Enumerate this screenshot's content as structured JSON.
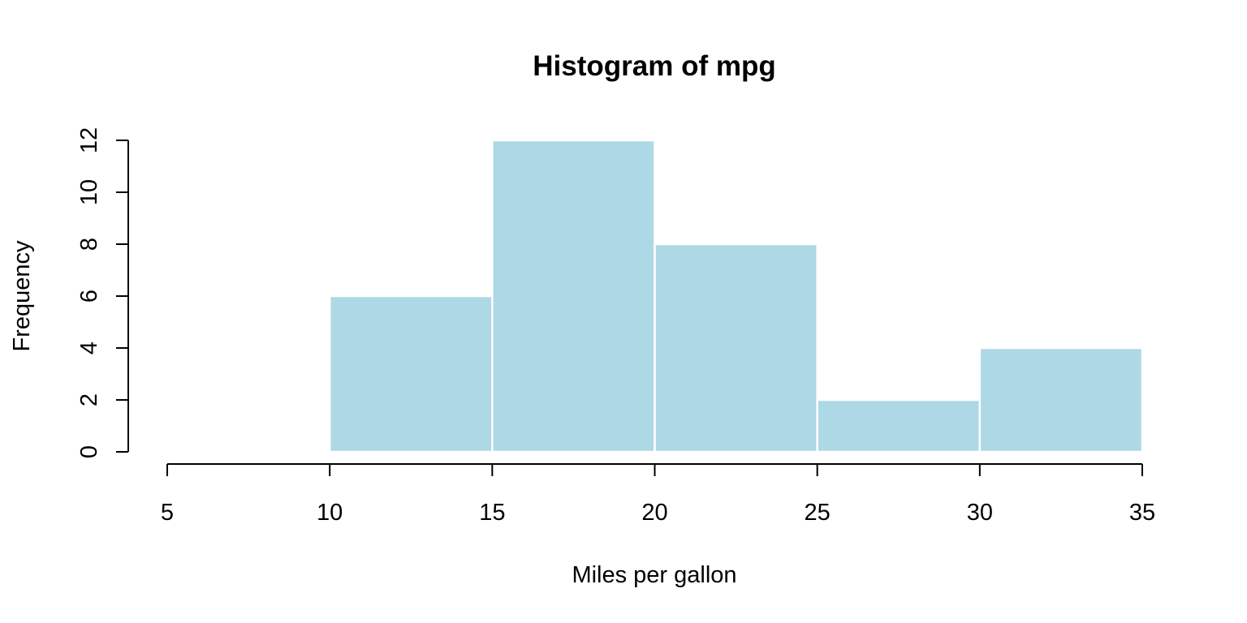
{
  "chart_data": {
    "type": "histogram",
    "title": "Histogram of mpg",
    "xlabel": "Miles per gallon",
    "ylabel": "Frequency",
    "bins": [
      {
        "start": 10,
        "end": 15,
        "count": 6
      },
      {
        "start": 15,
        "end": 20,
        "count": 12
      },
      {
        "start": 20,
        "end": 25,
        "count": 8
      },
      {
        "start": 25,
        "end": 30,
        "count": 2
      },
      {
        "start": 30,
        "end": 35,
        "count": 4
      }
    ],
    "xlim": [
      5,
      35
    ],
    "ylim": [
      0,
      12
    ],
    "x_ticks": [
      5,
      10,
      15,
      20,
      25,
      30,
      35
    ],
    "y_ticks": [
      0,
      2,
      4,
      6,
      8,
      10,
      12
    ],
    "bar_color": "#add8e6",
    "bar_border_color": "#ffffff",
    "grid": false,
    "legend": "none"
  }
}
